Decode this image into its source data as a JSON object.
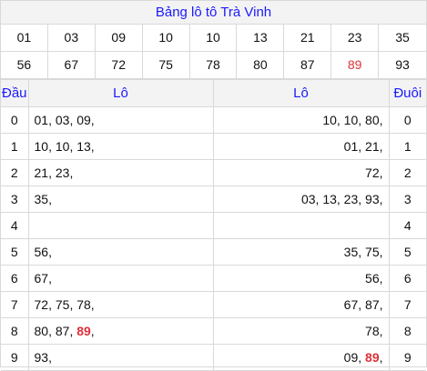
{
  "title": "Bảng lô tô Trà Vinh",
  "numbers": [
    {
      "v": "01"
    },
    {
      "v": "03"
    },
    {
      "v": "09"
    },
    {
      "v": "10"
    },
    {
      "v": "10"
    },
    {
      "v": "13"
    },
    {
      "v": "21"
    },
    {
      "v": "23"
    },
    {
      "v": "35"
    },
    {
      "v": "56"
    },
    {
      "v": "67"
    },
    {
      "v": "72"
    },
    {
      "v": "75"
    },
    {
      "v": "78"
    },
    {
      "v": "80"
    },
    {
      "v": "87"
    },
    {
      "v": "89",
      "color": "#e0303a"
    },
    {
      "v": "93"
    }
  ],
  "headers": {
    "dau": "Đầu",
    "lo_left": "Lô",
    "lo_right": "Lô",
    "duoi": "Đuôi"
  },
  "rows": [
    {
      "dau": "0",
      "left": [
        {
          "t": "01"
        },
        {
          "t": "03"
        },
        {
          "t": "09"
        }
      ],
      "right": [
        {
          "t": "10"
        },
        {
          "t": "10"
        },
        {
          "t": "80"
        }
      ],
      "duoi": "0"
    },
    {
      "dau": "1",
      "left": [
        {
          "t": "10"
        },
        {
          "t": "10"
        },
        {
          "t": "13"
        }
      ],
      "right": [
        {
          "t": "01"
        },
        {
          "t": "21"
        }
      ],
      "duoi": "1"
    },
    {
      "dau": "2",
      "left": [
        {
          "t": "21"
        },
        {
          "t": "23"
        }
      ],
      "right": [
        {
          "t": "72"
        }
      ],
      "duoi": "2"
    },
    {
      "dau": "3",
      "left": [
        {
          "t": "35"
        }
      ],
      "right": [
        {
          "t": "03"
        },
        {
          "t": "13"
        },
        {
          "t": "23"
        },
        {
          "t": "93"
        }
      ],
      "duoi": "3"
    },
    {
      "dau": "4",
      "left": [],
      "right": [],
      "duoi": "4"
    },
    {
      "dau": "5",
      "left": [
        {
          "t": "56"
        }
      ],
      "right": [
        {
          "t": "35"
        },
        {
          "t": "75"
        }
      ],
      "duoi": "5"
    },
    {
      "dau": "6",
      "left": [
        {
          "t": "67"
        }
      ],
      "right": [
        {
          "t": "56"
        }
      ],
      "duoi": "6"
    },
    {
      "dau": "7",
      "left": [
        {
          "t": "72"
        },
        {
          "t": "75"
        },
        {
          "t": "78"
        }
      ],
      "right": [
        {
          "t": "67"
        },
        {
          "t": "87"
        }
      ],
      "duoi": "7"
    },
    {
      "dau": "8",
      "left": [
        {
          "t": "80"
        },
        {
          "t": "87"
        },
        {
          "t": "89",
          "hl": true
        }
      ],
      "right": [
        {
          "t": "78"
        }
      ],
      "duoi": "8"
    },
    {
      "dau": "9",
      "left": [
        {
          "t": "93"
        }
      ],
      "right": [
        {
          "t": "09"
        },
        {
          "t": "89",
          "hl": true
        }
      ],
      "duoi": "9"
    }
  ]
}
